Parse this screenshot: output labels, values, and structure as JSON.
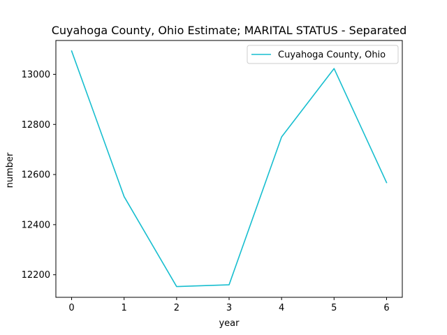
{
  "chart_data": {
    "type": "line",
    "title": "Cuyahoga County, Ohio Estimate; MARITAL STATUS - Separated",
    "xlabel": "year",
    "ylabel": "number",
    "x": [
      0,
      1,
      2,
      3,
      4,
      5,
      6
    ],
    "series": [
      {
        "name": "Cuyahoga County, Ohio",
        "values": [
          13093,
          12512,
          12153,
          12160,
          12750,
          13023,
          12568
        ],
        "color": "#17becf"
      }
    ],
    "xlim": [
      -0.3,
      6.3
    ],
    "ylim": [
      12110,
      13135
    ],
    "xticks": [
      0,
      1,
      2,
      3,
      4,
      5,
      6
    ],
    "yticks": [
      12200,
      12400,
      12600,
      12800,
      13000
    ],
    "grid": false,
    "legend_position": "top-right"
  }
}
